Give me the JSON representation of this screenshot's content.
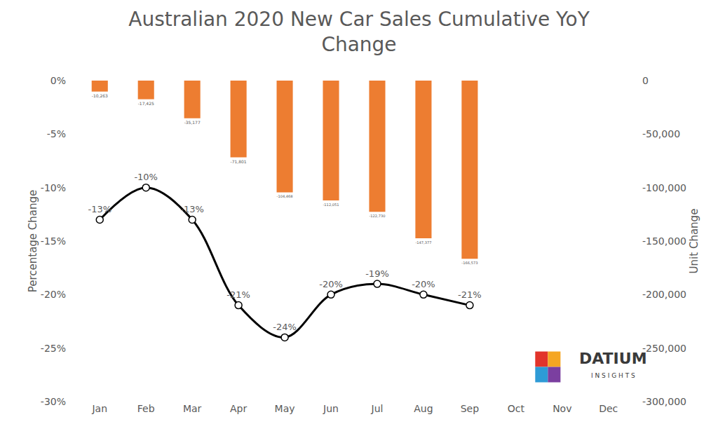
{
  "chart_data": {
    "type": "bar",
    "title": "Australian 2020 New Car Sales Cumulative YoY Change",
    "ylabel": "Percentage Change",
    "y2label": "Unit Change",
    "categories": [
      "Jan",
      "Feb",
      "Mar",
      "Apr",
      "May",
      "Jun",
      "Jul",
      "Aug",
      "Sep",
      "Oct",
      "Nov",
      "Dec"
    ],
    "series": [
      {
        "name": "Unit Change",
        "type": "bar",
        "axis": "y2",
        "color": "#ED7D31",
        "values": [
          -10263,
          -17425,
          -35177,
          -71801,
          -104468,
          -112051,
          -122730,
          -147377,
          -166573,
          null,
          null,
          null
        ],
        "value_labels": [
          "-10,263",
          "-17,425",
          "-35,177",
          "-71,801",
          "-104,468",
          "-112,051",
          "-122,730",
          "-147,377",
          "-166,573",
          null,
          null,
          null
        ]
      },
      {
        "name": "Percentage Change",
        "type": "line",
        "color": "#000000",
        "marker": "circle",
        "line_style": "solid",
        "values": [
          -13,
          -10,
          -13,
          -21,
          -24,
          -20,
          -19,
          -20,
          -21,
          null,
          null,
          null
        ],
        "value_labels": [
          "-13%",
          "-10%",
          "-13%",
          "-21%",
          "-24%",
          "-20%",
          "-19%",
          "-20%",
          "-21%",
          null,
          null,
          null
        ]
      }
    ],
    "ylim": [
      -30,
      0
    ],
    "yticks": [
      {
        "value": 0,
        "label": "0%"
      },
      {
        "value": -5,
        "label": "-5%"
      },
      {
        "value": -10,
        "label": "-10%"
      },
      {
        "value": -15,
        "label": "-15%"
      },
      {
        "value": -20,
        "label": "-20%"
      },
      {
        "value": -25,
        "label": "-25%"
      },
      {
        "value": -30,
        "label": "-30%"
      }
    ],
    "y2lim": [
      -300000,
      0
    ],
    "y2ticks": [
      0,
      {
        "value": -50000,
        "label": "-50,000"
      },
      {
        "value": -100000,
        "label": "-100,000"
      },
      {
        "value": -150000,
        "label": "-150,000"
      },
      {
        "value": -200000,
        "label": "-200,000"
      },
      {
        "value": -250000,
        "label": "-250,000"
      },
      {
        "value": -300000,
        "label": "-300,000"
      }
    ],
    "grid": false,
    "data_labels": true,
    "annotations": [
      {
        "text": "DATIUM"
      },
      {
        "text": "INSIGHTS"
      }
    ]
  }
}
